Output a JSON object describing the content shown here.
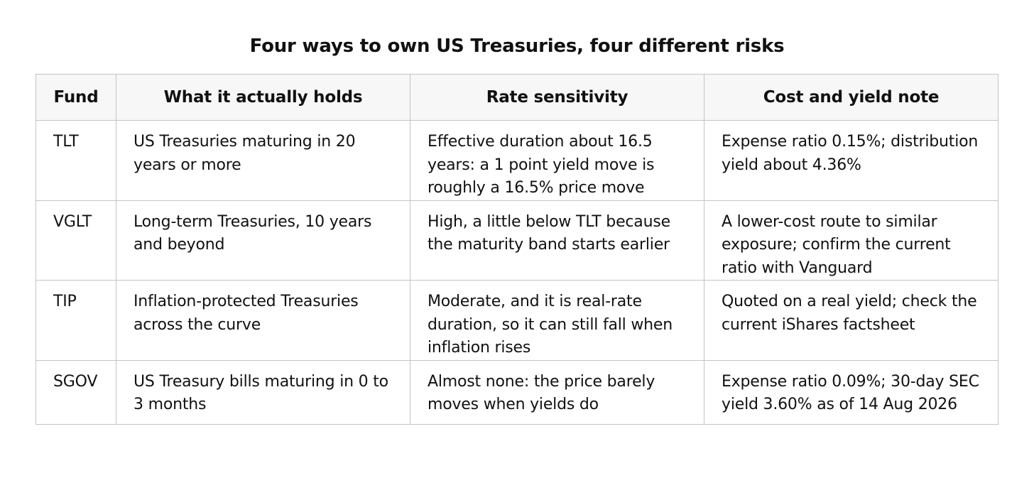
{
  "title": "Four ways to own US Treasuries, four different risks",
  "table": {
    "headers": [
      "Fund",
      "What it actually holds",
      "Rate sensitivity",
      "Cost and yield note"
    ],
    "rows": [
      {
        "fund": "TLT",
        "holds": "US Treasuries maturing in 20 years or more",
        "sensitivity": "Effective duration about 16.5 years: a 1 point yield move is roughly a 16.5% price move",
        "note": "Expense ratio 0.15%; distribution yield about 4.36%"
      },
      {
        "fund": "VGLT",
        "holds": "Long-term Treasuries, 10 years and beyond",
        "sensitivity": "High, a little below TLT because the maturity band starts earlier",
        "note": "A lower-cost route to similar exposure; confirm the current ratio with Vanguard"
      },
      {
        "fund": "TIP",
        "holds": "Inflation-protected Treasuries across the curve",
        "sensitivity": "Moderate, and it is real-rate duration, so it can still fall when inflation rises",
        "note": "Quoted on a real yield; check the current iShares factsheet"
      },
      {
        "fund": "SGOV",
        "holds": "US Treasury bills maturing in 0 to 3 months",
        "sensitivity": "Almost none: the price barely moves when yields do",
        "note": "Expense ratio 0.09%; 30-day SEC yield 3.60% as of 14 Aug 2026"
      }
    ]
  }
}
